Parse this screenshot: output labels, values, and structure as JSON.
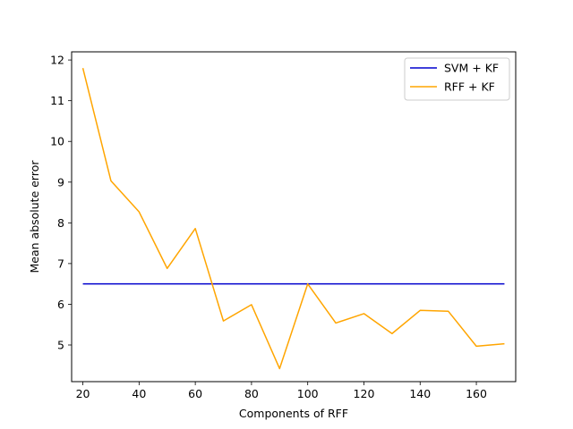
{
  "chart_data": {
    "type": "line",
    "title": "",
    "xlabel": "Components of RFF",
    "ylabel": "Mean absolute error",
    "xlim": [
      16,
      174
    ],
    "ylim": [
      4.1,
      12.2
    ],
    "xticks": [
      20,
      40,
      60,
      80,
      100,
      120,
      140,
      160
    ],
    "yticks": [
      5,
      6,
      7,
      8,
      9,
      10,
      11,
      12
    ],
    "grid": false,
    "legend_position": "top-right",
    "x": [
      20,
      30,
      40,
      50,
      60,
      70,
      80,
      90,
      100,
      110,
      120,
      130,
      140,
      150,
      160,
      170
    ],
    "series": [
      {
        "name": "SVM + KF",
        "color": "#0000cd",
        "values": [
          6.5,
          6.5,
          6.5,
          6.5,
          6.5,
          6.5,
          6.5,
          6.5,
          6.5,
          6.5,
          6.5,
          6.5,
          6.5,
          6.5,
          6.5,
          6.5
        ]
      },
      {
        "name": "RFF + KF",
        "color": "#ffa500",
        "values": [
          11.8,
          9.03,
          8.27,
          6.88,
          7.86,
          5.59,
          5.99,
          4.42,
          6.5,
          5.54,
          5.77,
          5.28,
          5.85,
          5.83,
          4.97,
          5.03
        ]
      }
    ]
  }
}
